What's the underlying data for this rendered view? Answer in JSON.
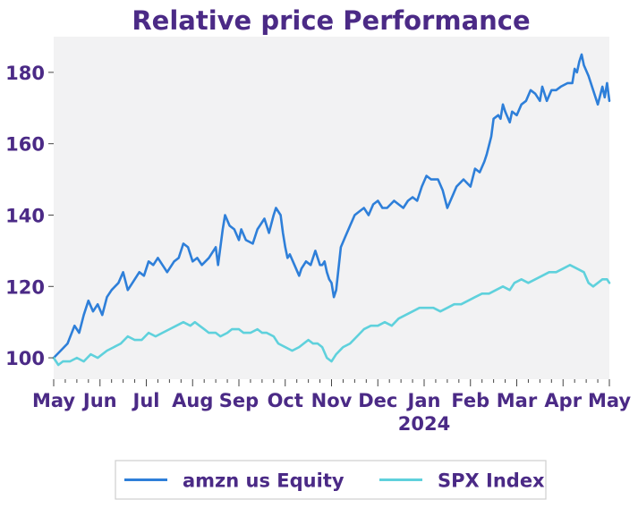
{
  "chart_data": {
    "type": "line",
    "title": "Relative price Performance",
    "xlabel": "",
    "ylabel": "",
    "ylim": [
      94,
      190
    ],
    "x_range": [
      0,
      12
    ],
    "y_ticks": [
      100,
      120,
      140,
      160,
      180
    ],
    "x_ticks": [
      {
        "pos": 0,
        "label": "May"
      },
      {
        "pos": 1,
        "label": "Jun"
      },
      {
        "pos": 2,
        "label": "Jul"
      },
      {
        "pos": 3,
        "label": "Aug"
      },
      {
        "pos": 4,
        "label": "Sep"
      },
      {
        "pos": 5,
        "label": "Oct"
      },
      {
        "pos": 6,
        "label": "Nov"
      },
      {
        "pos": 7,
        "label": "Dec"
      },
      {
        "pos": 8,
        "label": "Jan"
      },
      {
        "pos": 9,
        "label": "Feb"
      },
      {
        "pos": 10,
        "label": "Mar"
      },
      {
        "pos": 11,
        "label": "Apr"
      },
      {
        "pos": 12,
        "label": "May"
      }
    ],
    "year_label": "2024",
    "year_label_at": 8,
    "grid": false,
    "background": "#f2f2f3",
    "legend_position": "bottom-center",
    "series": [
      {
        "name": "amzn us Equity",
        "color": "#2e7fd9",
        "points": [
          [
            0,
            100
          ],
          [
            0.15,
            102
          ],
          [
            0.3,
            104
          ],
          [
            0.45,
            109
          ],
          [
            0.55,
            107
          ],
          [
            0.65,
            112
          ],
          [
            0.75,
            116
          ],
          [
            0.85,
            113
          ],
          [
            0.95,
            115
          ],
          [
            1.05,
            112
          ],
          [
            1.15,
            117
          ],
          [
            1.25,
            119
          ],
          [
            1.4,
            121
          ],
          [
            1.5,
            124
          ],
          [
            1.6,
            119
          ],
          [
            1.7,
            121
          ],
          [
            1.85,
            124
          ],
          [
            1.95,
            123
          ],
          [
            2.05,
            127
          ],
          [
            2.15,
            126
          ],
          [
            2.25,
            128
          ],
          [
            2.35,
            126
          ],
          [
            2.45,
            124
          ],
          [
            2.6,
            127
          ],
          [
            2.7,
            128
          ],
          [
            2.8,
            132
          ],
          [
            2.9,
            131
          ],
          [
            3.0,
            127
          ],
          [
            3.1,
            128
          ],
          [
            3.2,
            126
          ],
          [
            3.35,
            128
          ],
          [
            3.5,
            131
          ],
          [
            3.55,
            126
          ],
          [
            3.65,
            136
          ],
          [
            3.7,
            140
          ],
          [
            3.8,
            137
          ],
          [
            3.9,
            136
          ],
          [
            4.0,
            133
          ],
          [
            4.05,
            136
          ],
          [
            4.15,
            133
          ],
          [
            4.3,
            132
          ],
          [
            4.4,
            136
          ],
          [
            4.5,
            138
          ],
          [
            4.55,
            139
          ],
          [
            4.65,
            135
          ],
          [
            4.75,
            140
          ],
          [
            4.8,
            142
          ],
          [
            4.9,
            140
          ],
          [
            4.95,
            135
          ],
          [
            5.0,
            131
          ],
          [
            5.05,
            128
          ],
          [
            5.1,
            129
          ],
          [
            5.2,
            126
          ],
          [
            5.3,
            123
          ],
          [
            5.35,
            125
          ],
          [
            5.45,
            127
          ],
          [
            5.55,
            126
          ],
          [
            5.65,
            130
          ],
          [
            5.75,
            126
          ],
          [
            5.8,
            126
          ],
          [
            5.85,
            127
          ],
          [
            5.9,
            124
          ],
          [
            5.95,
            122
          ],
          [
            6.0,
            121
          ],
          [
            6.05,
            117
          ],
          [
            6.1,
            119
          ],
          [
            6.2,
            131
          ],
          [
            6.3,
            134
          ],
          [
            6.4,
            137
          ],
          [
            6.5,
            140
          ],
          [
            6.6,
            141
          ],
          [
            6.7,
            142
          ],
          [
            6.8,
            140
          ],
          [
            6.9,
            143
          ],
          [
            7.0,
            144
          ],
          [
            7.1,
            142
          ],
          [
            7.2,
            142
          ],
          [
            7.35,
            144
          ],
          [
            7.45,
            143
          ],
          [
            7.55,
            142
          ],
          [
            7.65,
            144
          ],
          [
            7.75,
            145
          ],
          [
            7.85,
            144
          ],
          [
            7.95,
            148
          ],
          [
            8.05,
            151
          ],
          [
            8.15,
            150
          ],
          [
            8.3,
            150
          ],
          [
            8.4,
            147
          ],
          [
            8.5,
            142
          ],
          [
            8.6,
            145
          ],
          [
            8.7,
            148
          ],
          [
            8.85,
            150
          ],
          [
            9.0,
            148
          ],
          [
            9.1,
            153
          ],
          [
            9.2,
            152
          ],
          [
            9.3,
            155
          ],
          [
            9.35,
            157
          ],
          [
            9.45,
            162
          ],
          [
            9.5,
            167
          ],
          [
            9.6,
            168
          ],
          [
            9.65,
            167
          ],
          [
            9.7,
            171
          ],
          [
            9.75,
            169
          ],
          [
            9.85,
            166
          ],
          [
            9.9,
            169
          ],
          [
            10.0,
            168
          ],
          [
            10.1,
            171
          ],
          [
            10.2,
            172
          ],
          [
            10.3,
            175
          ],
          [
            10.4,
            174
          ],
          [
            10.5,
            172
          ],
          [
            10.55,
            176
          ],
          [
            10.65,
            172
          ],
          [
            10.75,
            175
          ],
          [
            10.85,
            175
          ],
          [
            10.95,
            176
          ],
          [
            11.1,
            177
          ],
          [
            11.2,
            177
          ],
          [
            11.25,
            181
          ],
          [
            11.3,
            180
          ],
          [
            11.35,
            183
          ],
          [
            11.4,
            185
          ],
          [
            11.45,
            182
          ],
          [
            11.55,
            179
          ],
          [
            11.65,
            175
          ],
          [
            11.75,
            171
          ],
          [
            11.85,
            176
          ],
          [
            11.9,
            173
          ],
          [
            11.95,
            177
          ],
          [
            12.0,
            172
          ]
        ]
      },
      {
        "name": "SPX Index",
        "color": "#5fd1dc",
        "points": [
          [
            0,
            100
          ],
          [
            0.1,
            98
          ],
          [
            0.2,
            99
          ],
          [
            0.35,
            99
          ],
          [
            0.5,
            100
          ],
          [
            0.65,
            99
          ],
          [
            0.8,
            101
          ],
          [
            0.95,
            100
          ],
          [
            1.05,
            101
          ],
          [
            1.15,
            102
          ],
          [
            1.3,
            103
          ],
          [
            1.45,
            104
          ],
          [
            1.6,
            106
          ],
          [
            1.75,
            105
          ],
          [
            1.9,
            105
          ],
          [
            2.05,
            107
          ],
          [
            2.2,
            106
          ],
          [
            2.35,
            107
          ],
          [
            2.5,
            108
          ],
          [
            2.65,
            109
          ],
          [
            2.8,
            110
          ],
          [
            2.95,
            109
          ],
          [
            3.05,
            110
          ],
          [
            3.15,
            109
          ],
          [
            3.25,
            108
          ],
          [
            3.35,
            107
          ],
          [
            3.5,
            107
          ],
          [
            3.6,
            106
          ],
          [
            3.75,
            107
          ],
          [
            3.85,
            108
          ],
          [
            4.0,
            108
          ],
          [
            4.1,
            107
          ],
          [
            4.25,
            107
          ],
          [
            4.4,
            108
          ],
          [
            4.5,
            107
          ],
          [
            4.6,
            107
          ],
          [
            4.75,
            106
          ],
          [
            4.85,
            104
          ],
          [
            5.0,
            103
          ],
          [
            5.15,
            102
          ],
          [
            5.3,
            103
          ],
          [
            5.4,
            104
          ],
          [
            5.5,
            105
          ],
          [
            5.6,
            104
          ],
          [
            5.7,
            104
          ],
          [
            5.8,
            103
          ],
          [
            5.9,
            100
          ],
          [
            6.0,
            99
          ],
          [
            6.1,
            101
          ],
          [
            6.25,
            103
          ],
          [
            6.4,
            104
          ],
          [
            6.55,
            106
          ],
          [
            6.7,
            108
          ],
          [
            6.85,
            109
          ],
          [
            7.0,
            109
          ],
          [
            7.15,
            110
          ],
          [
            7.3,
            109
          ],
          [
            7.45,
            111
          ],
          [
            7.6,
            112
          ],
          [
            7.75,
            113
          ],
          [
            7.9,
            114
          ],
          [
            8.05,
            114
          ],
          [
            8.2,
            114
          ],
          [
            8.35,
            113
          ],
          [
            8.5,
            114
          ],
          [
            8.65,
            115
          ],
          [
            8.8,
            115
          ],
          [
            8.95,
            116
          ],
          [
            9.1,
            117
          ],
          [
            9.25,
            118
          ],
          [
            9.4,
            118
          ],
          [
            9.55,
            119
          ],
          [
            9.7,
            120
          ],
          [
            9.85,
            119
          ],
          [
            9.95,
            121
          ],
          [
            10.1,
            122
          ],
          [
            10.25,
            121
          ],
          [
            10.4,
            122
          ],
          [
            10.55,
            123
          ],
          [
            10.7,
            124
          ],
          [
            10.85,
            124
          ],
          [
            11.0,
            125
          ],
          [
            11.15,
            126
          ],
          [
            11.3,
            125
          ],
          [
            11.45,
            124
          ],
          [
            11.55,
            121
          ],
          [
            11.65,
            120
          ],
          [
            11.75,
            121
          ],
          [
            11.85,
            122
          ],
          [
            11.95,
            122
          ],
          [
            12.0,
            121
          ]
        ]
      }
    ]
  }
}
